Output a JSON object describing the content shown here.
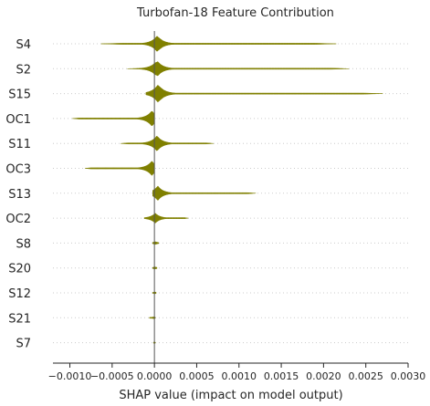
{
  "chart_data": {
    "type": "violin",
    "title": "Turbofan-18 Feature Contribution",
    "xlabel": "SHAP value (impact on model output)",
    "ylabel": "",
    "xlim": [
      -0.0012,
      0.003
    ],
    "xticks": [
      -0.001,
      -0.0005,
      0,
      0.0005,
      0.001,
      0.0015,
      0.002,
      0.0025,
      0.003
    ],
    "xtick_labels": [
      "−0.0010",
      "−0.0005",
      "0.0000",
      "0.0005",
      "0.0010",
      "0.0015",
      "0.0020",
      "0.0025",
      "0.0030"
    ],
    "grid": "horizontal dotted",
    "color": "#808000",
    "features": [
      {
        "name": "S4",
        "min": -0.00063,
        "max": 0.00215,
        "peak": 3.5e-05,
        "width": 0.9
      },
      {
        "name": "S2",
        "min": -0.00032,
        "max": 0.0023,
        "peak": 3e-05,
        "width": 0.9
      },
      {
        "name": "S15",
        "min": -0.0001,
        "max": 0.0027,
        "peak": 4.5e-05,
        "width": 1.0
      },
      {
        "name": "OC1",
        "min": -0.00097,
        "max": 0.0,
        "peak": -3e-05,
        "width": 0.85
      },
      {
        "name": "S11",
        "min": -0.0004,
        "max": 0.0007,
        "peak": 3e-05,
        "width": 0.85
      },
      {
        "name": "OC3",
        "min": -0.00082,
        "max": 0.0,
        "peak": -3e-05,
        "width": 0.8
      },
      {
        "name": "S13",
        "min": -2e-05,
        "max": 0.0012,
        "peak": 4e-05,
        "width": 0.8
      },
      {
        "name": "OC2",
        "min": -0.00012,
        "max": 0.0004,
        "peak": 1e-05,
        "width": 0.55
      },
      {
        "name": "S8",
        "min": -2e-05,
        "max": 5e-05,
        "peak": 1e-05,
        "width": 0.15
      },
      {
        "name": "S20",
        "min": -2e-05,
        "max": 3e-05,
        "peak": 5e-06,
        "width": 0.12
      },
      {
        "name": "S12",
        "min": -2e-05,
        "max": 2e-05,
        "peak": 5e-06,
        "width": 0.1
      },
      {
        "name": "S21",
        "min": -6e-05,
        "max": 1e-05,
        "peak": -1e-05,
        "width": 0.1
      },
      {
        "name": "S7",
        "min": -1e-05,
        "max": 1e-05,
        "peak": 0.0,
        "width": 0.08
      }
    ]
  }
}
